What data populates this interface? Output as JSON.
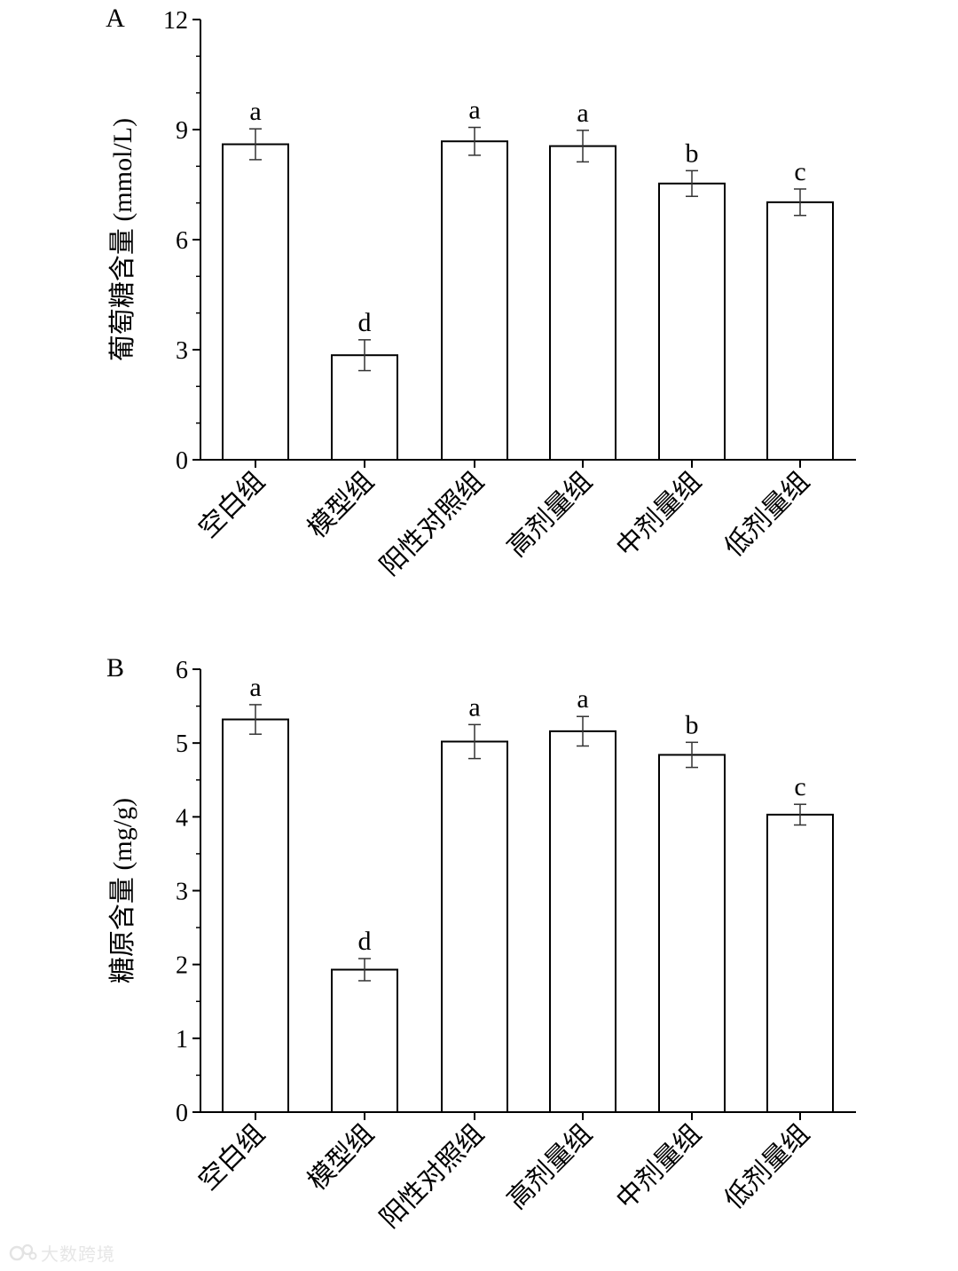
{
  "chart_data": [
    {
      "type": "bar",
      "panel_label": "A",
      "categories": [
        "空白组",
        "模型组",
        "阳性对照组",
        "高剂量组",
        "中剂量组",
        "低剂量组"
      ],
      "values": [
        8.6,
        2.85,
        8.68,
        8.55,
        7.53,
        7.02
      ],
      "errors": [
        0.42,
        0.42,
        0.38,
        0.43,
        0.35,
        0.36
      ],
      "significance": [
        "a",
        "d",
        "a",
        "a",
        "b",
        "c"
      ],
      "ylabel": "葡萄糖含量 (mmol/L)",
      "xlabel": "",
      "ylim": [
        0,
        12
      ],
      "yticks": [
        0,
        3,
        6,
        9,
        12
      ],
      "ytick_labels": [
        "0",
        "3",
        "6",
        "9",
        "12"
      ],
      "grid": false
    },
    {
      "type": "bar",
      "panel_label": "B",
      "categories": [
        "空白组",
        "模型组",
        "阳性对照组",
        "高剂量组",
        "中剂量组",
        "低剂量组"
      ],
      "values": [
        5.32,
        1.93,
        5.02,
        5.16,
        4.84,
        4.03
      ],
      "errors": [
        0.2,
        0.15,
        0.23,
        0.2,
        0.17,
        0.14
      ],
      "significance": [
        "a",
        "d",
        "a",
        "a",
        "b",
        "c"
      ],
      "ylabel": "糖原含量 (mg/g)",
      "xlabel": "",
      "ylim": [
        0,
        6
      ],
      "yticks": [
        0,
        1,
        2,
        3,
        4,
        5,
        6
      ],
      "ytick_labels": [
        "0",
        "1",
        "2",
        "3",
        "4",
        "5",
        "6"
      ],
      "grid": false
    }
  ],
  "watermark": {
    "text": "大数跨境"
  },
  "colors": {
    "bar_fill": "#ffffff",
    "stroke": "#000000",
    "errorbar": "#333333",
    "watermark": "#e6e6e6"
  }
}
